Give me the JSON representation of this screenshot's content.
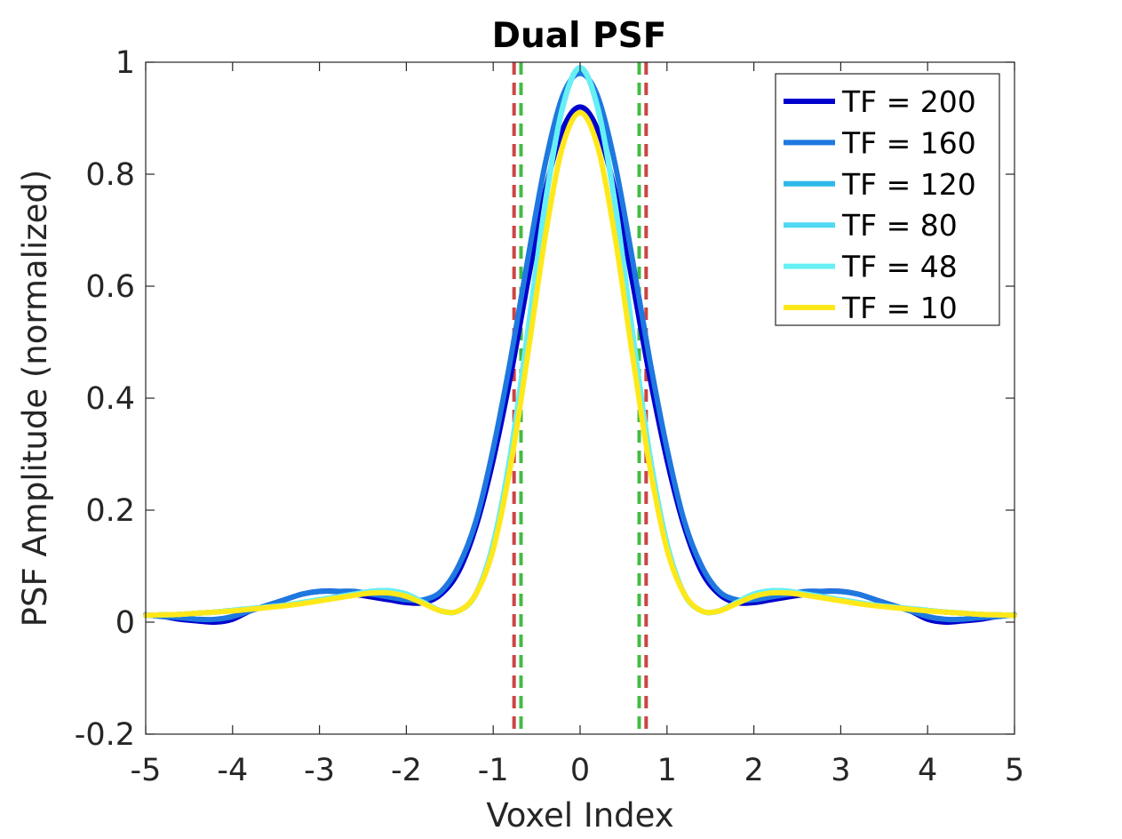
{
  "chart_data": {
    "type": "line",
    "title": "Dual PSF",
    "xlabel": "Voxel Index",
    "ylabel": "PSF Amplitude (normalized)",
    "xlim": [
      -5,
      5
    ],
    "ylim": [
      -0.2,
      1
    ],
    "xticks": [
      -5,
      -4,
      -3,
      -2,
      -1,
      0,
      1,
      2,
      3,
      4,
      5
    ],
    "yticks": [
      -0.2,
      0,
      0.2,
      0.4,
      0.6,
      0.8,
      1
    ],
    "xtick_labels": [
      "-5",
      "-4",
      "-3",
      "-2",
      "-1",
      "0",
      "1",
      "2",
      "3",
      "4",
      "5"
    ],
    "ytick_labels": [
      "-0.2",
      "0",
      "0.2",
      "0.4",
      "0.6",
      "0.8",
      "1"
    ],
    "grid": false,
    "legend_position": "top-right",
    "series": [
      {
        "name": "TF = 200",
        "color": "#0000CC",
        "x": [
          0,
          0.2,
          0.4,
          0.6,
          0.8,
          1.0,
          1.2,
          1.4,
          1.6,
          1.8,
          2.0,
          2.2,
          2.4,
          2.6,
          2.8,
          3.0,
          3.2,
          3.4,
          3.6,
          3.8,
          4.0,
          4.2,
          4.4,
          4.6,
          4.8,
          5.0
        ],
        "y": [
          0.92,
          0.88,
          0.77,
          0.61,
          0.44,
          0.29,
          0.17,
          0.09,
          0.05,
          0.035,
          0.035,
          0.04,
          0.045,
          0.05,
          0.055,
          0.055,
          0.05,
          0.04,
          0.03,
          0.02,
          0.005,
          0.0,
          0.002,
          0.005,
          0.01,
          0.013
        ]
      },
      {
        "name": "TF = 160",
        "color": "#1E78E0",
        "x": [
          0,
          0.2,
          0.4,
          0.6,
          0.8,
          1.0,
          1.2,
          1.4,
          1.6,
          1.8,
          2.0,
          2.2,
          2.4,
          2.6,
          2.8,
          3.0,
          3.2,
          3.4,
          3.6,
          3.8,
          4.0,
          4.2,
          4.4,
          4.6,
          4.8,
          5.0
        ],
        "y": [
          0.98,
          0.94,
          0.82,
          0.65,
          0.47,
          0.31,
          0.18,
          0.1,
          0.055,
          0.04,
          0.04,
          0.045,
          0.05,
          0.055,
          0.055,
          0.055,
          0.05,
          0.04,
          0.03,
          0.02,
          0.01,
          0.005,
          0.005,
          0.008,
          0.01,
          0.013
        ]
      },
      {
        "name": "TF = 120",
        "color": "#2CB8EA",
        "x": [
          0,
          0.2,
          0.4,
          0.6,
          0.8,
          1.0,
          1.2,
          1.4,
          1.6,
          1.8,
          2.0,
          2.2,
          2.4,
          2.6,
          2.8,
          3.0,
          3.2,
          3.4,
          3.6,
          3.8,
          4.0,
          4.2,
          4.4,
          4.6,
          4.8,
          5.0
        ],
        "y": [
          0.99,
          0.92,
          0.75,
          0.52,
          0.3,
          0.14,
          0.05,
          0.02,
          0.02,
          0.035,
          0.05,
          0.056,
          0.055,
          0.05,
          0.045,
          0.04,
          0.035,
          0.03,
          0.027,
          0.024,
          0.021,
          0.018,
          0.016,
          0.014,
          0.013,
          0.012
        ]
      },
      {
        "name": "TF = 80",
        "color": "#4FD9F2",
        "x": [
          0,
          0.2,
          0.4,
          0.6,
          0.8,
          1.0,
          1.2,
          1.4,
          1.6,
          1.8,
          2.0,
          2.2,
          2.4,
          2.6,
          2.8,
          3.0,
          3.2,
          3.4,
          3.6,
          3.8,
          4.0,
          4.2,
          4.4,
          4.6,
          4.8,
          5.0
        ],
        "y": [
          0.99,
          0.92,
          0.75,
          0.52,
          0.3,
          0.14,
          0.05,
          0.02,
          0.02,
          0.035,
          0.05,
          0.056,
          0.055,
          0.05,
          0.045,
          0.04,
          0.035,
          0.03,
          0.027,
          0.024,
          0.021,
          0.018,
          0.016,
          0.014,
          0.013,
          0.012
        ]
      },
      {
        "name": "TF = 48",
        "color": "#66F0F5",
        "x": [
          0,
          0.2,
          0.4,
          0.6,
          0.8,
          1.0,
          1.2,
          1.4,
          1.6,
          1.8,
          2.0,
          2.2,
          2.4,
          2.6,
          2.8,
          3.0,
          3.2,
          3.4,
          3.6,
          3.8,
          4.0,
          4.2,
          4.4,
          4.6,
          4.8,
          5.0
        ],
        "y": [
          0.99,
          0.92,
          0.75,
          0.52,
          0.3,
          0.14,
          0.05,
          0.02,
          0.02,
          0.035,
          0.05,
          0.056,
          0.055,
          0.05,
          0.045,
          0.04,
          0.035,
          0.03,
          0.027,
          0.024,
          0.021,
          0.018,
          0.016,
          0.014,
          0.013,
          0.012
        ]
      },
      {
        "name": "TF = 10",
        "color": "#FFE81A",
        "x": [
          0,
          0.2,
          0.4,
          0.6,
          0.8,
          1.0,
          1.2,
          1.4,
          1.6,
          1.8,
          2.0,
          2.2,
          2.4,
          2.6,
          2.8,
          3.0,
          3.2,
          3.4,
          3.6,
          3.8,
          4.0,
          4.2,
          4.4,
          4.6,
          4.8,
          5.0
        ],
        "y": [
          0.91,
          0.85,
          0.69,
          0.48,
          0.28,
          0.13,
          0.05,
          0.02,
          0.02,
          0.033,
          0.046,
          0.052,
          0.052,
          0.048,
          0.043,
          0.038,
          0.033,
          0.029,
          0.026,
          0.023,
          0.02,
          0.018,
          0.016,
          0.014,
          0.013,
          0.012
        ]
      }
    ],
    "reference_lines": [
      {
        "x": -0.76,
        "color": "#CC4444",
        "style": "dashed"
      },
      {
        "x": 0.76,
        "color": "#CC4444",
        "style": "dashed"
      },
      {
        "x": -0.68,
        "color": "#44BB44",
        "style": "dashed"
      },
      {
        "x": 0.68,
        "color": "#44BB44",
        "style": "dashed"
      }
    ]
  }
}
